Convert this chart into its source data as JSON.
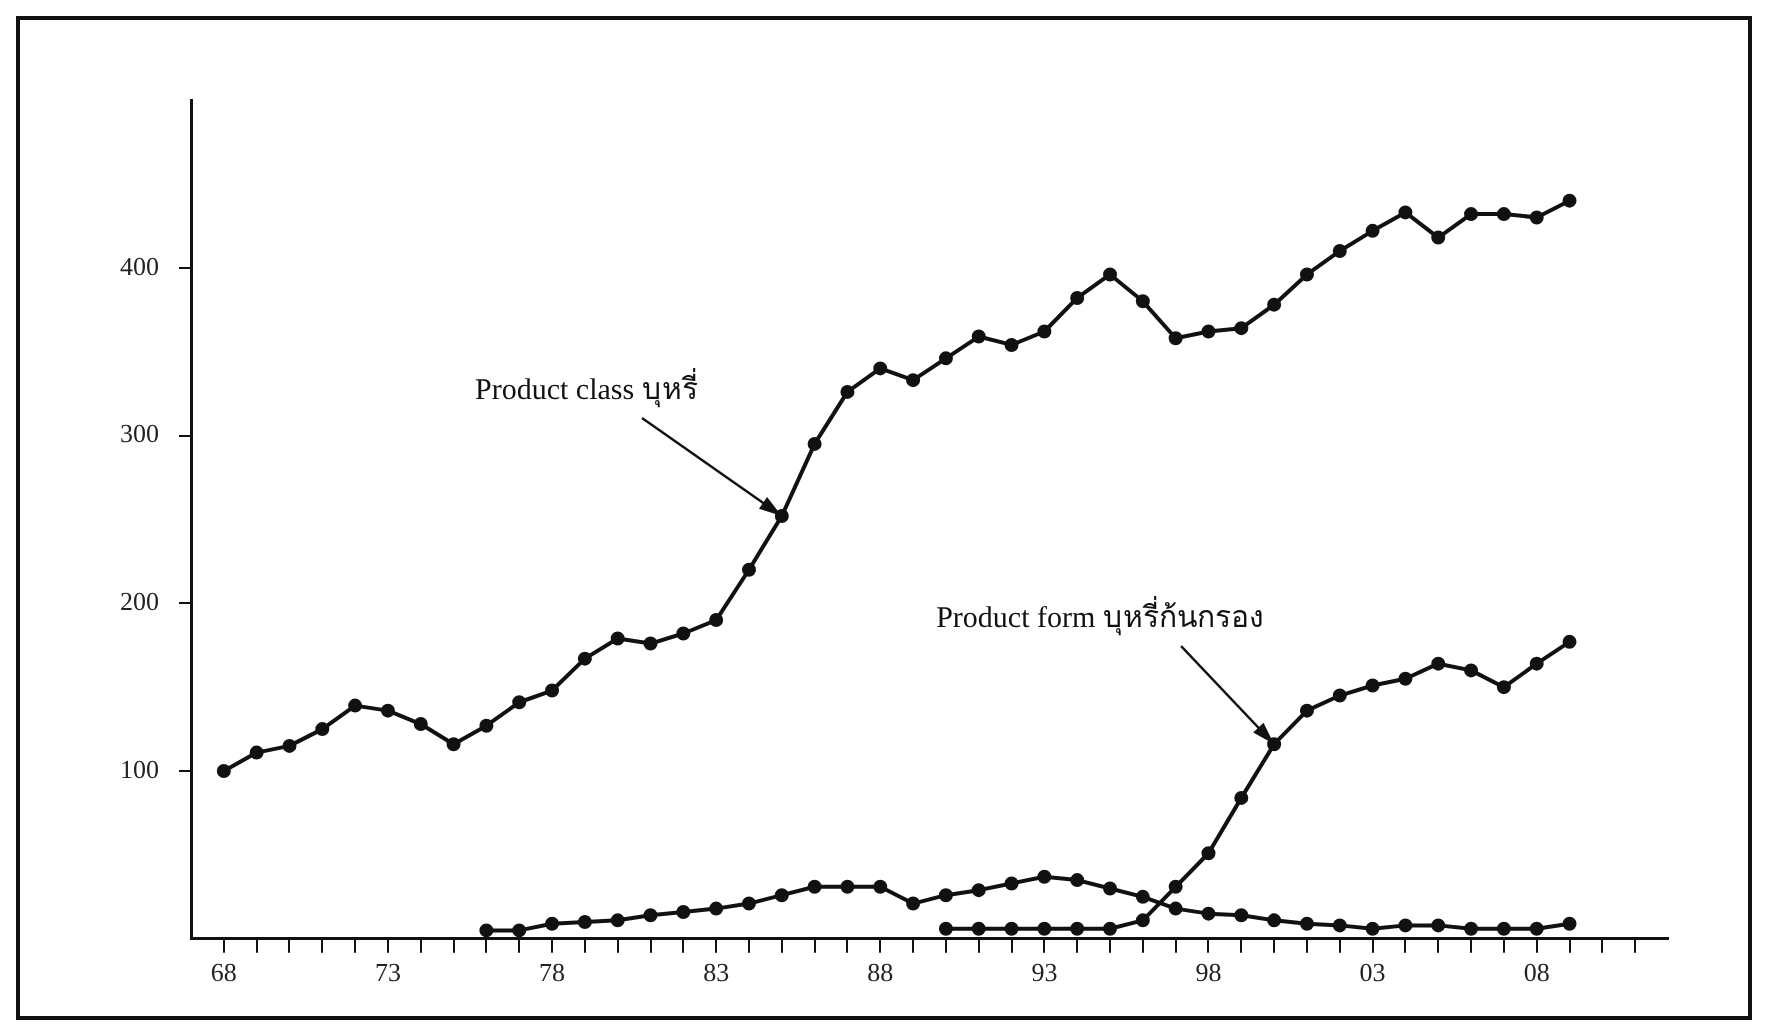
{
  "chart_data": {
    "type": "line",
    "x": [
      1968,
      1969,
      1970,
      1971,
      1972,
      1973,
      1974,
      1975,
      1976,
      1977,
      1978,
      1979,
      1980,
      1981,
      1982,
      1983,
      1984,
      1985,
      1986,
      1987,
      1988,
      1989,
      1990,
      1991,
      1992,
      1993,
      1994,
      1995,
      1996,
      1997,
      1998,
      1999,
      2000,
      2001,
      2002,
      2003,
      2004,
      2005,
      2006,
      2007,
      2008,
      2009
    ],
    "series": [
      {
        "color": "#111111",
        "values": [
          100,
          111,
          115,
          125,
          139,
          136,
          128,
          116,
          127,
          141,
          148,
          167,
          179,
          176,
          182,
          190,
          220,
          252,
          295,
          326,
          340,
          333,
          346,
          359,
          354,
          362,
          382,
          396,
          380,
          358,
          362,
          364,
          378,
          396,
          410,
          422,
          433,
          418,
          432,
          432,
          430,
          440
        ]
      },
      {
        "color": "#111111",
        "values": [
          null,
          null,
          null,
          null,
          null,
          null,
          null,
          null,
          5,
          5,
          9,
          10,
          11,
          14,
          16,
          18,
          21,
          26,
          31,
          31,
          31,
          21,
          26,
          29,
          33,
          37,
          35,
          30,
          25,
          18,
          15,
          14,
          11,
          9,
          8,
          6,
          8,
          8,
          6,
          6,
          6,
          9
        ]
      },
      {
        "color": "#111111",
        "values": [
          null,
          null,
          null,
          null,
          null,
          null,
          null,
          null,
          null,
          null,
          null,
          null,
          null,
          null,
          null,
          null,
          null,
          null,
          null,
          null,
          null,
          null,
          6,
          6,
          6,
          6,
          6,
          6,
          11,
          31,
          51,
          84,
          116,
          136,
          145,
          151,
          155,
          164,
          160,
          150,
          164,
          177
        ]
      }
    ],
    "xlim": [
      1967,
      2012
    ],
    "xticks": [
      {
        "value": 1968,
        "label": "68"
      },
      {
        "value": 1969,
        "label": null
      },
      {
        "value": 1970,
        "label": null
      },
      {
        "value": 1971,
        "label": null
      },
      {
        "value": 1972,
        "label": null
      },
      {
        "value": 1973,
        "label": "73"
      },
      {
        "value": 1974,
        "label": null
      },
      {
        "value": 1975,
        "label": null
      },
      {
        "value": 1976,
        "label": null
      },
      {
        "value": 1977,
        "label": null
      },
      {
        "value": 1978,
        "label": "78"
      },
      {
        "value": 1979,
        "label": null
      },
      {
        "value": 1980,
        "label": null
      },
      {
        "value": 1981,
        "label": null
      },
      {
        "value": 1982,
        "label": null
      },
      {
        "value": 1983,
        "label": "83"
      },
      {
        "value": 1984,
        "label": null
      },
      {
        "value": 1985,
        "label": null
      },
      {
        "value": 1986,
        "label": null
      },
      {
        "value": 1987,
        "label": null
      },
      {
        "value": 1988,
        "label": "88"
      },
      {
        "value": 1989,
        "label": null
      },
      {
        "value": 1990,
        "label": null
      },
      {
        "value": 1991,
        "label": null
      },
      {
        "value": 1992,
        "label": null
      },
      {
        "value": 1993,
        "label": "93"
      },
      {
        "value": 1994,
        "label": null
      },
      {
        "value": 1995,
        "label": null
      },
      {
        "value": 1996,
        "label": null
      },
      {
        "value": 1997,
        "label": null
      },
      {
        "value": 1998,
        "label": "98"
      },
      {
        "value": 1999,
        "label": null
      },
      {
        "value": 2000,
        "label": null
      },
      {
        "value": 2001,
        "label": null
      },
      {
        "value": 2002,
        "label": null
      },
      {
        "value": 2003,
        "label": "03"
      },
      {
        "value": 2004,
        "label": null
      },
      {
        "value": 2005,
        "label": null
      },
      {
        "value": 2006,
        "label": null
      },
      {
        "value": 2007,
        "label": null
      },
      {
        "value": 2008,
        "label": "08"
      },
      {
        "value": 2009,
        "label": null
      },
      {
        "value": 2010,
        "label": null
      },
      {
        "value": 2011,
        "label": null
      }
    ],
    "ylim": [
      0,
      500
    ],
    "yticks": [
      100,
      200,
      300,
      400
    ],
    "annotations": [
      {
        "text": "Product class บุหรี่",
        "x": 1985,
        "y": 252
      },
      {
        "text": "Product form บุหรี่ก้นกรอง",
        "x": 2000,
        "y": 116
      }
    ],
    "grid": false,
    "legend": false,
    "marker": "circle",
    "line_style": "solid"
  }
}
